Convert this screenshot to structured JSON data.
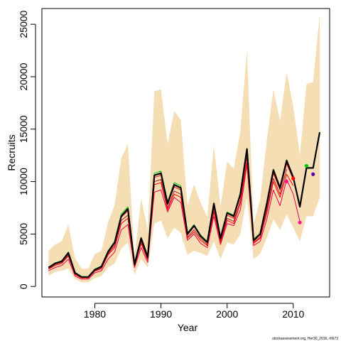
{
  "chart_data": {
    "type": "line",
    "xlabel": "Year",
    "ylabel": "Recruits",
    "xlim": [
      1972,
      2015.5
    ],
    "ylim": [
      -1000,
      26500
    ],
    "x_ticks": [
      "1980",
      "1990",
      "2000",
      "2010"
    ],
    "y_ticks": [
      "0",
      "5000",
      "10000",
      "15000",
      "20000",
      "25000"
    ],
    "grid": false,
    "legend": "none",
    "colors": {
      "band": "#f5deb3",
      "main": "#000000",
      "inner_red": "#ff0000",
      "outer_red": "#b2182b",
      "green": "#00cc00",
      "last_point": "#5b00a0",
      "pink_point": "#ff1493"
    },
    "band": {
      "x": [
        1973,
        1974,
        1975,
        1976,
        1977,
        1978,
        1979,
        1980,
        1981,
        1982,
        1983,
        1984,
        1985,
        1986,
        1987,
        1988,
        1989,
        1990,
        1991,
        1992,
        1993,
        1994,
        1995,
        1996,
        1997,
        1998,
        1999,
        2000,
        2001,
        2002,
        2003,
        2004,
        2005,
        2006,
        2007,
        2008,
        2009,
        2010,
        2011,
        2012,
        2013,
        2014
      ],
      "upper": [
        3400,
        4000,
        4300,
        5900,
        2700,
        1700,
        1700,
        3100,
        3400,
        6100,
        7800,
        12200,
        13600,
        2800,
        8400,
        5400,
        18600,
        18800,
        13600,
        16700,
        15900,
        7700,
        9700,
        8000,
        6600,
        13500,
        7600,
        11900,
        11200,
        14800,
        22500,
        6000,
        8300,
        13900,
        18800,
        15800,
        20400,
        17200,
        12500,
        19300,
        19500,
        25900
      ],
      "lower": [
        1000,
        1400,
        1500,
        1700,
        700,
        400,
        400,
        800,
        1000,
        1800,
        2200,
        3600,
        4200,
        1100,
        2600,
        1800,
        6000,
        6300,
        4600,
        5600,
        5100,
        3000,
        3400,
        3200,
        2900,
        4300,
        2600,
        4200,
        4000,
        5000,
        8500,
        2600,
        3100,
        4600,
        6400,
        5400,
        6900,
        5600,
        4300,
        6700,
        6700,
        8500
      ]
    },
    "series": [
      {
        "x": [
          1973,
          1974,
          1975,
          1976,
          1977,
          1978,
          1979,
          1980,
          1981,
          1982,
          1983,
          1984,
          1985,
          1986,
          1987,
          1988,
          1989,
          1990,
          1991,
          1992,
          1993,
          1994,
          1995,
          1996,
          1997,
          1998,
          1999,
          2000,
          2001,
          2002,
          2003,
          2004,
          2005,
          2006,
          2007,
          2008,
          2009,
          2010,
          2011,
          2012,
          2013,
          2014
        ],
        "values": [
          1800,
          2200,
          2400,
          3200,
          1300,
          900,
          900,
          1600,
          1900,
          3300,
          4200,
          6700,
          7400,
          2100,
          4600,
          2800,
          10600,
          10800,
          7900,
          9700,
          9400,
          5000,
          5800,
          4800,
          4200,
          7900,
          4600,
          7000,
          6700,
          8800,
          13100,
          4400,
          5000,
          7900,
          11100,
          9400,
          12000,
          10400,
          7600,
          11300,
          11300,
          14700
        ]
      },
      {
        "x": [
          1973,
          1974,
          1975,
          1976,
          1977,
          1978,
          1979,
          1980,
          1981,
          1982,
          1983,
          1984,
          1985,
          1986,
          1987,
          1988,
          1989,
          1990,
          1991,
          1992,
          1993,
          1994,
          1995,
          1996,
          1997,
          1998,
          1999,
          2000,
          2001,
          2002,
          2003,
          2004,
          2005,
          2006,
          2007,
          2008,
          2009,
          2010
        ],
        "values": [
          1800,
          2200,
          2400,
          3100,
          1300,
          900,
          900,
          1600,
          1900,
          3200,
          4100,
          6600,
          7200,
          2100,
          4500,
          2800,
          10400,
          10600,
          7800,
          9500,
          9200,
          4900,
          5700,
          4800,
          4200,
          7700,
          4500,
          6800,
          6500,
          8600,
          12800,
          4300,
          4900,
          7600,
          10800,
          9200,
          11700,
          10200
        ]
      },
      {
        "x": [
          1973,
          1974,
          1975,
          1976,
          1977,
          1978,
          1979,
          1980,
          1981,
          1982,
          1983,
          1984,
          1985,
          1986,
          1987,
          1988,
          1989,
          1990,
          1991,
          1992,
          1993,
          1994,
          1995,
          1996,
          1997,
          1998,
          1999,
          2000,
          2001,
          2002,
          2003,
          2004,
          2005,
          2006,
          2007,
          2008,
          2009
        ],
        "values": [
          1700,
          2100,
          2300,
          3000,
          1200,
          850,
          850,
          1500,
          1800,
          3100,
          3900,
          6300,
          6800,
          2000,
          4300,
          2600,
          10000,
          10200,
          7500,
          9100,
          8800,
          4700,
          5400,
          4600,
          4000,
          7400,
          4300,
          6500,
          6200,
          8200,
          12300,
          4200,
          4700,
          7300,
          10300,
          8800,
          11200
        ]
      },
      {
        "x": [
          1973,
          1974,
          1975,
          1976,
          1977,
          1978,
          1979,
          1980,
          1981,
          1982,
          1983,
          1984,
          1985,
          1986,
          1987,
          1988,
          1989,
          1990,
          1991,
          1992,
          1993,
          1994,
          1995,
          1996,
          1997,
          1998,
          1999,
          2000,
          2001,
          2002,
          2003,
          2004,
          2005,
          2006,
          2007,
          2008,
          2009,
          2010
        ],
        "values": [
          1650,
          2000,
          2200,
          2900,
          1150,
          800,
          800,
          1450,
          1700,
          3000,
          3700,
          6000,
          6500,
          1950,
          4100,
          2500,
          9700,
          9900,
          7300,
          8800,
          8500,
          4600,
          5200,
          4400,
          3900,
          7100,
          4200,
          6300,
          6000,
          7900,
          11800,
          4100,
          4600,
          7000,
          10000,
          8500,
          10700,
          9600
        ]
      },
      {
        "x": [
          1973,
          1974,
          1975,
          1976,
          1977,
          1978,
          1979,
          1980,
          1981,
          1982,
          1983,
          1984,
          1985,
          1986,
          1987,
          1988,
          1989,
          1990,
          1991,
          1992,
          1993,
          1994,
          1995,
          1996,
          1997,
          1998,
          1999,
          2000,
          2001,
          2002,
          2003,
          2004,
          2005,
          2006,
          2007,
          2008,
          2009,
          2010,
          2011
        ],
        "values": [
          1500,
          1800,
          2000,
          2600,
          1000,
          700,
          700,
          1300,
          1500,
          2600,
          3300,
          5400,
          5900,
          1800,
          3700,
          2300,
          9000,
          9200,
          7100,
          8500,
          8000,
          4400,
          5000,
          4100,
          3700,
          6700,
          4000,
          6000,
          5800,
          7300,
          11600,
          3900,
          4300,
          6400,
          9200,
          7700,
          10200,
          8800,
          6200
        ]
      },
      {
        "x": [
          1973,
          1974,
          1975,
          1976,
          1977,
          1978,
          1979,
          1980,
          1981,
          1982,
          1983,
          1984,
          1985,
          1986,
          1987,
          1988,
          1989,
          1990,
          1991,
          1992,
          1993,
          1994,
          1995,
          1996,
          1997,
          1998,
          1999,
          2000,
          2001,
          2002,
          2003,
          2004,
          2005,
          2006,
          2007,
          2008,
          2009,
          2010,
          2011,
          2012
        ],
        "values": [
          1850,
          2250,
          2450,
          3300,
          1350,
          950,
          950,
          1650,
          1950,
          3400,
          4300,
          6900,
          7600,
          2150,
          4700,
          2900,
          10800,
          11000,
          8100,
          9900,
          9600,
          5100,
          5900,
          4900,
          4300,
          8000,
          4700,
          7100,
          6800,
          8900,
          13200,
          4500,
          5100,
          8000,
          11200,
          9500,
          12100,
          10500,
          7700,
          11500
        ]
      }
    ],
    "points": [
      {
        "x": 2012,
        "y": 11500
      },
      {
        "x": 2013,
        "y": 10700
      },
      {
        "x": 2009,
        "y": 10000
      },
      {
        "x": 2010,
        "y": 10300
      },
      {
        "x": 2011,
        "y": 6100
      }
    ],
    "footnote": "stockassessment.org, Her30_2016, r6673"
  }
}
